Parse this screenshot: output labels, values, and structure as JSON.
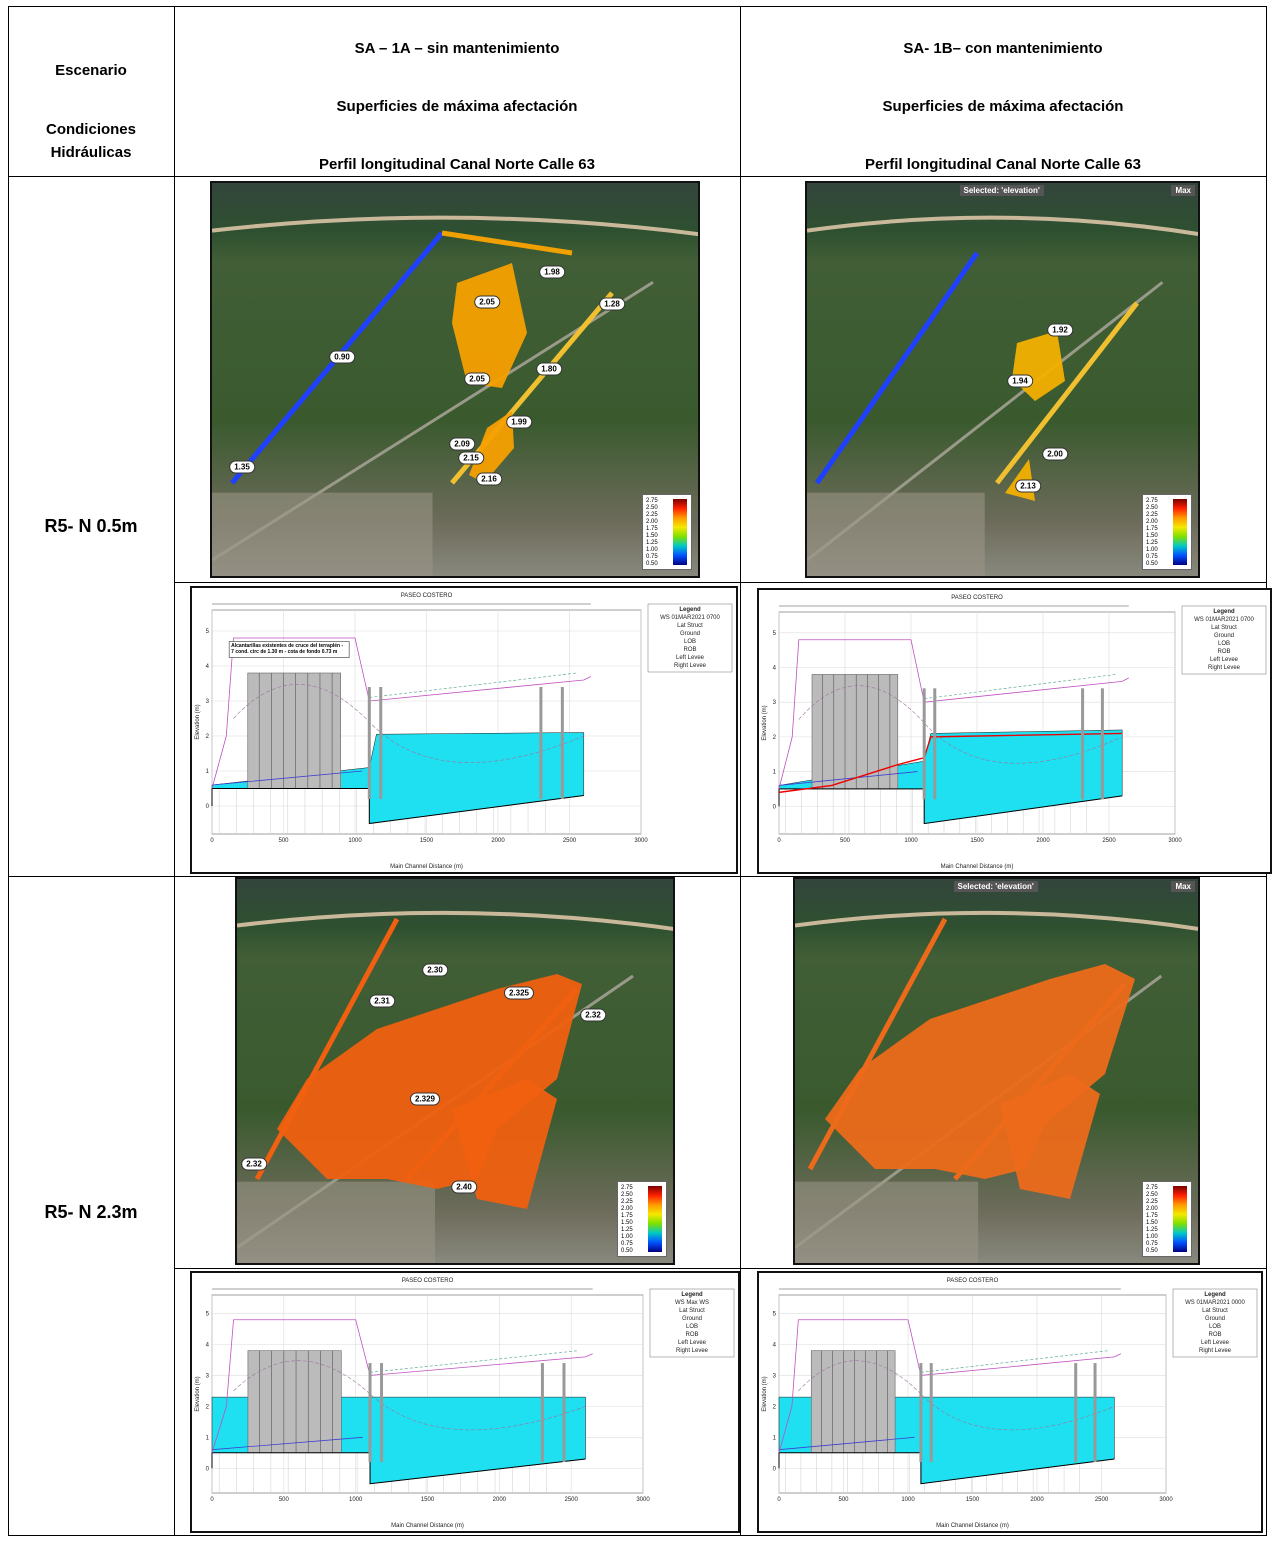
{
  "header": {
    "scenario": "Escenario",
    "conditions": "Condiciones Hidráulicas",
    "col_a": {
      "line1": "SA – 1A – sin mantenimiento",
      "line2": "Superficies de máxima afectación",
      "line3": "Perfil longitudinal Canal Norte Calle 63"
    },
    "col_b": {
      "line1": "SA- 1B– con mantenimiento",
      "line2": "Superficies de máxima afectación",
      "line3": "Perfil longitudinal Canal Norte Calle 63"
    }
  },
  "rows": [
    {
      "label": "R5- N 0.5m",
      "map_a": {
        "labels": [
          "1.98",
          "2.05",
          "1.28",
          "0.90",
          "2.05",
          "1.80",
          "1.99",
          "2.09",
          "2.15",
          "2.16",
          "1.35"
        ],
        "legend": [
          "2.75",
          "2.50",
          "2.25",
          "2.00",
          "1.75",
          "1.50",
          "1.25",
          "1.00",
          "0.75",
          "0.50"
        ]
      },
      "map_b": {
        "selected": "Selected: 'elevation'",
        "max": "Max",
        "labels": [
          "1.92",
          "1.94",
          "2.00",
          "2.13"
        ],
        "legend": [
          "2.75",
          "2.50",
          "2.25",
          "2.00",
          "1.75",
          "1.50",
          "1.25",
          "1.00",
          "0.75",
          "0.50"
        ]
      },
      "profile_a": {
        "title": "PASEO COSTERO",
        "note": "Alcantarillas existentes de cruce del terraplén - 7 cond. circ de 1.30 m - cota de fondo 0.73 m",
        "legend_title": "Legend",
        "legend": [
          "WS 01MAR2021 0700",
          "Lat Struct",
          "Ground",
          "LOB",
          "ROB",
          "Left Levee",
          "Right Levee"
        ],
        "x_label": "Main Channel Distance (m)",
        "y_label": "Elevation (m)",
        "xticks": [
          "0",
          "500",
          "1000",
          "1500",
          "2000",
          "2500",
          "3000"
        ],
        "yticks": [
          "0",
          "1",
          "2",
          "3",
          "4",
          "5"
        ]
      },
      "profile_b": {
        "title": "PASEO COSTERO",
        "legend_title": "Legend",
        "legend": [
          "WS 01MAR2021 0700",
          "Lat Struct",
          "Ground",
          "LOB",
          "ROB",
          "Left Levee",
          "Right Levee"
        ],
        "x_label": "Main Channel Distance (m)",
        "y_label": "Elevation (m)",
        "xticks": [
          "0",
          "500",
          "1000",
          "1500",
          "2000",
          "2500",
          "3000"
        ],
        "yticks": [
          "0",
          "1",
          "2",
          "3",
          "4",
          "5"
        ]
      }
    },
    {
      "label": "R5- N 2.3m",
      "map_a": {
        "labels": [
          "2.30",
          "2.31",
          "2.325",
          "2.32",
          "2.329",
          "2.32",
          "2.40"
        ],
        "legend": [
          "2.75",
          "2.50",
          "2.25",
          "2.00",
          "1.75",
          "1.50",
          "1.25",
          "1.00",
          "0.75",
          "0.50"
        ]
      },
      "map_b": {
        "selected": "Selected: 'elevation'",
        "max": "Max",
        "labels": [],
        "legend": [
          "2.75",
          "2.50",
          "2.25",
          "2.00",
          "1.75",
          "1.50",
          "1.25",
          "1.00",
          "0.75",
          "0.50"
        ]
      },
      "profile_a": {
        "title": "PASEO COSTERO",
        "legend_title": "Legend",
        "legend": [
          "WS Max WS",
          "Lat Struct",
          "Ground",
          "LOB",
          "ROB",
          "Left Levee",
          "Right Levee"
        ],
        "x_label": "Main Channel Distance (m)",
        "y_label": "Elevation (m)",
        "xticks": [
          "0",
          "500",
          "1000",
          "1500",
          "2000",
          "2500",
          "3000"
        ],
        "yticks": [
          "0",
          "1",
          "2",
          "3",
          "4",
          "5"
        ]
      },
      "profile_b": {
        "title": "PASEO COSTERO",
        "legend_title": "Legend",
        "legend": [
          "WS 01MAR2021 0000",
          "Lat Struct",
          "Ground",
          "LOB",
          "ROB",
          "Left Levee",
          "Right Levee"
        ],
        "x_label": "Main Channel Distance (m)",
        "y_label": "Elevation (m)",
        "xticks": [
          "0",
          "500",
          "1000",
          "1500",
          "2000",
          "2500",
          "3000"
        ],
        "yticks": [
          "0",
          "1",
          "2",
          "3",
          "4",
          "5"
        ]
      }
    }
  ]
}
